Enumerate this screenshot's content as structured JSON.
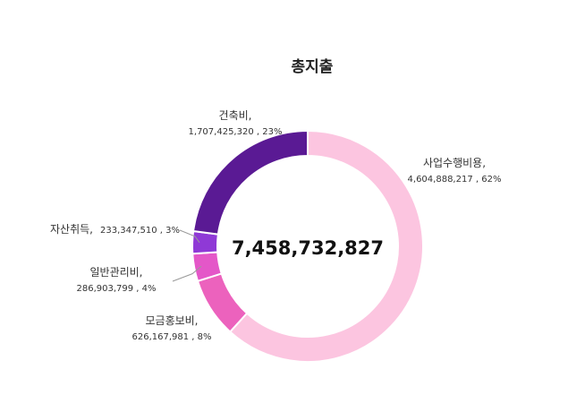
{
  "chart_data": {
    "type": "pie",
    "style": "donut",
    "title": "총지출",
    "total_label": "7,458,732,827",
    "categories": [
      "사업수행비용",
      "모금홍보비",
      "일반관리비",
      "자산취득",
      "건축비"
    ],
    "values": [
      4604888217,
      626167981,
      286903799,
      233347510,
      1707425320
    ],
    "value_labels": [
      "4,604,888,217",
      "626,167,981",
      "286,903,799",
      "233,347,510",
      "1,707,425,320"
    ],
    "percent_labels": [
      "62%",
      "8%",
      "4%",
      "3%",
      "23%"
    ],
    "colors": [
      "#fcc5e0",
      "#ec62bd",
      "#e457c8",
      "#8f39d6",
      "#5a1a94"
    ],
    "legend": "none"
  }
}
